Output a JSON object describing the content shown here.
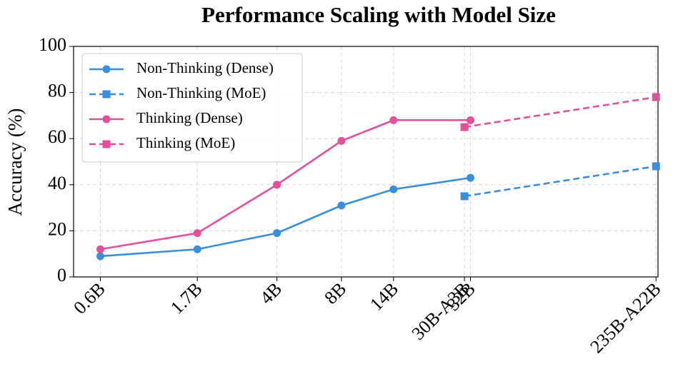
{
  "chart_data": {
    "type": "line",
    "title": "Performance Scaling with Model Size",
    "y_label": "Accuracy (%)",
    "x_scale": "log",
    "xlim": [
      0.45,
      240
    ],
    "xticks": [
      {
        "value": 0.6,
        "label": "0.6B"
      },
      {
        "value": 1.7,
        "label": "1.7B"
      },
      {
        "value": 4,
        "label": "4B"
      },
      {
        "value": 8,
        "label": "8B"
      },
      {
        "value": 14,
        "label": "14B"
      },
      {
        "value": 30,
        "label": "30B-A3B"
      },
      {
        "value": 32,
        "label": "32B"
      },
      {
        "value": 235,
        "label": "235B-A22B"
      }
    ],
    "ylim": [
      0,
      100
    ],
    "yticks": [
      0,
      20,
      40,
      60,
      80,
      100
    ],
    "grid": true,
    "legend": "upper left",
    "series": [
      {
        "name": "Non-Thinking (Dense)",
        "color": "#3a8ee0",
        "linestyle": "solid",
        "marker": "circle",
        "x": [
          0.6,
          1.7,
          4,
          8,
          14,
          32
        ],
        "values": [
          9,
          12,
          19,
          31,
          38,
          43
        ]
      },
      {
        "name": "Non-Thinking (MoE)",
        "color": "#3a8ee0",
        "linestyle": "dashed",
        "marker": "square",
        "x": [
          30,
          235
        ],
        "values": [
          35,
          48
        ]
      },
      {
        "name": "Thinking (Dense)",
        "color": "#e2509b",
        "linestyle": "solid",
        "marker": "circle",
        "x": [
          0.6,
          1.7,
          4,
          8,
          14,
          32
        ],
        "values": [
          12,
          19,
          40,
          59,
          68,
          68
        ]
      },
      {
        "name": "Thinking (MoE)",
        "color": "#e2509b",
        "linestyle": "dashed",
        "marker": "square",
        "x": [
          30,
          235
        ],
        "values": [
          65,
          78
        ]
      }
    ]
  }
}
